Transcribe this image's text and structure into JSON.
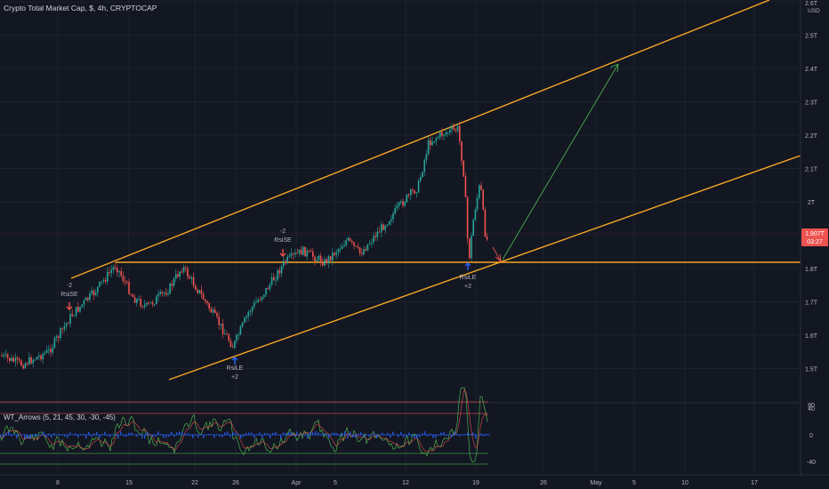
{
  "header": {
    "title": "Crypto Total Market Cap, $, 4h, CRYPTOCAP",
    "currency": "USD"
  },
  "price_axis": {
    "ticks": [
      "2.6T",
      "2.5T",
      "2.4T",
      "2.3T",
      "2.2T",
      "2.1T",
      "2T",
      "1.9T",
      "1.8T",
      "1.7T",
      "1.6T",
      "1.5T"
    ],
    "current_price": "1.907T",
    "countdown": "03:27"
  },
  "time_axis": {
    "ticks": [
      "8",
      "15",
      "22",
      "26",
      "Apr",
      "5",
      "12",
      "19",
      "26",
      "May",
      "5",
      "10",
      "17"
    ]
  },
  "annotations": [
    {
      "top": "-2",
      "bottom": "RsiSE"
    },
    {
      "top": "-2",
      "bottom": "RsiSE"
    },
    {
      "top": "RsiLE",
      "bottom": "+2"
    },
    {
      "top": "RsiLE",
      "bottom": "+2"
    }
  ],
  "indicator": {
    "title": "WT_Arrows (5, 21, 45, 30, -30, -45)",
    "ticks": [
      "80",
      "40",
      "0",
      "-40"
    ]
  },
  "colors": {
    "background": "#131722",
    "up_candle": "#26a69a",
    "down_candle": "#ef5350",
    "channel_line": "#f5a623",
    "projection_arrow": "#4caf50",
    "price_badge": "#ef5350",
    "sell_arrow": "#ef5350",
    "buy_arrow": "#2962ff",
    "wt1_line": "#4caf50",
    "wt2_line": "#ef5350"
  },
  "icons": {
    "sell_signal": "arrow-down-icon",
    "buy_signal": "arrow-up-icon"
  }
}
